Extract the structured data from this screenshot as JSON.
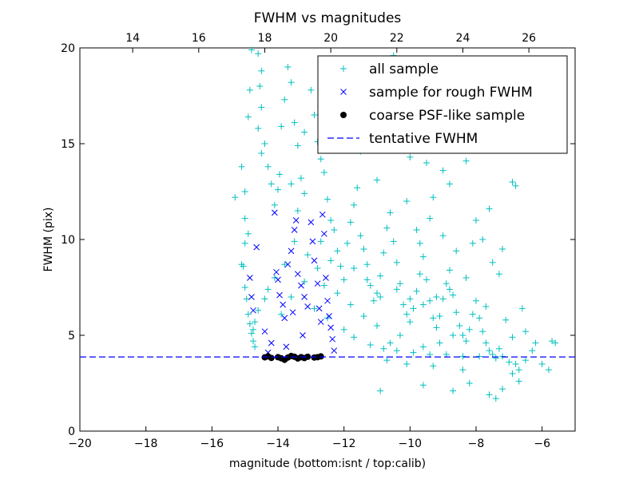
{
  "chart_data": {
    "type": "scatter",
    "title": "FWHM vs magnitudes",
    "xlabel": "magnitude (bottom:isnt / top:calib)",
    "ylabel": "FWHM (pix)",
    "xlim": [
      -20,
      -5
    ],
    "ylim": [
      0,
      20
    ],
    "top_xlim": [
      12.4,
      27.4
    ],
    "x_ticks": [
      -20,
      -18,
      -16,
      -14,
      -12,
      -10,
      -8,
      -6
    ],
    "x_tick_labels": [
      "−20",
      "−18",
      "−16",
      "−14",
      "−12",
      "−10",
      "−8",
      "−6"
    ],
    "top_x_ticks": [
      14,
      16,
      18,
      20,
      22,
      24,
      26
    ],
    "top_x_tick_labels": [
      "14",
      "16",
      "18",
      "20",
      "22",
      "24",
      "26"
    ],
    "y_ticks": [
      0,
      5,
      10,
      15,
      20
    ],
    "y_tick_labels": [
      "0",
      "5",
      "10",
      "15",
      "20"
    ],
    "grid": false,
    "legend_position": "top-right",
    "series": [
      {
        "name": "all sample",
        "marker": "+",
        "color": "#00bfbf",
        "points": [
          [
            -15.3,
            12.2
          ],
          [
            -15.1,
            13.8
          ],
          [
            -15.0,
            12.5
          ],
          [
            -15.0,
            11.1
          ],
          [
            -14.9,
            10.3
          ],
          [
            -15.0,
            9.8
          ],
          [
            -15.1,
            8.7
          ],
          [
            -15.05,
            8.6
          ],
          [
            -15.0,
            7.5
          ],
          [
            -14.95,
            6.9
          ],
          [
            -14.9,
            6.1
          ],
          [
            -14.85,
            5.6
          ],
          [
            -14.8,
            5.1
          ],
          [
            -14.75,
            4.7
          ],
          [
            -14.7,
            4.4
          ],
          [
            -14.9,
            16.4
          ],
          [
            -14.85,
            17.8
          ],
          [
            -14.8,
            19.9
          ],
          [
            -14.6,
            19.7
          ],
          [
            -14.5,
            18.8
          ],
          [
            -14.55,
            18.0
          ],
          [
            -14.5,
            16.9
          ],
          [
            -14.6,
            15.8
          ],
          [
            -14.4,
            15.0
          ],
          [
            -14.5,
            14.5
          ],
          [
            -14.3,
            13.8
          ],
          [
            -14.2,
            12.9
          ],
          [
            -14.0,
            12.6
          ],
          [
            -14.1,
            11.8
          ],
          [
            -13.95,
            13.4
          ],
          [
            -13.9,
            15.9
          ],
          [
            -13.8,
            17.3
          ],
          [
            -13.7,
            19.0
          ],
          [
            -13.6,
            18.2
          ],
          [
            -13.5,
            16.1
          ],
          [
            -13.4,
            14.9
          ],
          [
            -13.3,
            13.2
          ],
          [
            -13.2,
            12.4
          ],
          [
            -13.4,
            11.5
          ],
          [
            -13.6,
            12.9
          ],
          [
            -13.2,
            15.6
          ],
          [
            -13.0,
            17.8
          ],
          [
            -12.9,
            16.5
          ],
          [
            -12.8,
            15.1
          ],
          [
            -12.7,
            14.2
          ],
          [
            -12.6,
            13.5
          ],
          [
            -12.5,
            12.1
          ],
          [
            -12.4,
            11.0
          ],
          [
            -12.3,
            10.5
          ],
          [
            -12.2,
            9.4
          ],
          [
            -12.1,
            8.6
          ],
          [
            -12.0,
            7.9
          ],
          [
            -11.9,
            9.8
          ],
          [
            -11.8,
            10.9
          ],
          [
            -11.7,
            11.8
          ],
          [
            -11.6,
            12.7
          ],
          [
            -11.5,
            10.2
          ],
          [
            -11.4,
            9.5
          ],
          [
            -11.3,
            8.7
          ],
          [
            -11.2,
            7.6
          ],
          [
            -11.1,
            6.8
          ],
          [
            -11.0,
            7.2
          ],
          [
            -10.9,
            8.1
          ],
          [
            -10.8,
            9.3
          ],
          [
            -10.7,
            10.6
          ],
          [
            -10.6,
            11.4
          ],
          [
            -10.5,
            9.9
          ],
          [
            -10.4,
            8.8
          ],
          [
            -10.3,
            7.7
          ],
          [
            -10.2,
            6.6
          ],
          [
            -10.1,
            6.1
          ],
          [
            -10.0,
            5.7
          ],
          [
            -9.9,
            6.4
          ],
          [
            -9.8,
            7.3
          ],
          [
            -9.7,
            8.2
          ],
          [
            -9.6,
            9.1
          ],
          [
            -9.5,
            7.9
          ],
          [
            -9.4,
            6.8
          ],
          [
            -9.3,
            5.9
          ],
          [
            -9.2,
            5.4
          ],
          [
            -9.1,
            6.0
          ],
          [
            -9.0,
            6.9
          ],
          [
            -8.9,
            7.7
          ],
          [
            -8.8,
            8.4
          ],
          [
            -8.7,
            7.1
          ],
          [
            -8.6,
            6.2
          ],
          [
            -8.5,
            5.5
          ],
          [
            -8.4,
            5.0
          ],
          [
            -8.3,
            4.7
          ],
          [
            -8.2,
            5.3
          ],
          [
            -8.1,
            6.1
          ],
          [
            -8.0,
            6.8
          ],
          [
            -7.9,
            5.9
          ],
          [
            -7.8,
            5.2
          ],
          [
            -7.7,
            4.6
          ],
          [
            -7.6,
            4.2
          ],
          [
            -7.5,
            4.0
          ],
          [
            -7.4,
            3.8
          ],
          [
            -7.3,
            4.3
          ],
          [
            -7.2,
            3.9
          ],
          [
            -7.0,
            3.6
          ],
          [
            -6.8,
            3.5
          ],
          [
            -6.7,
            3.2
          ],
          [
            -6.5,
            3.7
          ],
          [
            -6.3,
            4.2
          ],
          [
            -6.0,
            3.5
          ],
          [
            -5.8,
            3.2
          ],
          [
            -5.7,
            4.7
          ],
          [
            -5.6,
            4.6
          ],
          [
            -6.2,
            4.6
          ],
          [
            -6.9,
            13.0
          ],
          [
            -6.8,
            12.8
          ],
          [
            -7.5,
            16.3
          ],
          [
            -8.2,
            17.8
          ],
          [
            -8.3,
            14.1
          ],
          [
            -9.8,
            19.3
          ],
          [
            -10.2,
            17.9
          ],
          [
            -10.7,
            15.6
          ],
          [
            -10.0,
            14.3
          ],
          [
            -9.5,
            14.0
          ],
          [
            -9.0,
            13.6
          ],
          [
            -8.8,
            12.9
          ],
          [
            -7.6,
            11.6
          ],
          [
            -7.2,
            9.5
          ],
          [
            -7.5,
            8.8
          ],
          [
            -8.1,
            9.8
          ],
          [
            -9.3,
            12.2
          ],
          [
            -10.1,
            12.0
          ],
          [
            -11.0,
            13.1
          ],
          [
            -11.5,
            14.6
          ],
          [
            -12.1,
            16.2
          ],
          [
            -12.3,
            17.0
          ],
          [
            -11.6,
            18.7
          ],
          [
            -11.3,
            19.2
          ],
          [
            -10.5,
            19.6
          ],
          [
            -10.8,
            18.2
          ],
          [
            -9.2,
            16.8
          ],
          [
            -8.5,
            15.4
          ],
          [
            -8.0,
            11.0
          ],
          [
            -7.8,
            10.0
          ],
          [
            -7.3,
            8.2
          ],
          [
            -6.6,
            6.4
          ],
          [
            -6.5,
            5.2
          ],
          [
            -6.9,
            4.9
          ],
          [
            -7.1,
            5.8
          ],
          [
            -7.7,
            6.5
          ],
          [
            -8.7,
            5.0
          ],
          [
            -9.1,
            4.6
          ],
          [
            -9.6,
            4.4
          ],
          [
            -10.3,
            5.0
          ],
          [
            -10.6,
            4.6
          ],
          [
            -11.0,
            5.5
          ],
          [
            -11.4,
            6.0
          ],
          [
            -11.8,
            6.6
          ],
          [
            -12.2,
            7.2
          ],
          [
            -12.6,
            7.6
          ],
          [
            -12.8,
            8.5
          ],
          [
            -13.1,
            9.2
          ],
          [
            -13.5,
            9.9
          ],
          [
            -13.8,
            8.7
          ],
          [
            -14.1,
            8.0
          ],
          [
            -14.3,
            7.4
          ],
          [
            -14.4,
            6.9
          ],
          [
            -14.6,
            6.3
          ],
          [
            -14.7,
            5.7
          ],
          [
            -14.75,
            5.3
          ],
          [
            -13.9,
            6.1
          ],
          [
            -13.6,
            7.0
          ],
          [
            -13.2,
            7.8
          ],
          [
            -12.9,
            6.4
          ],
          [
            -12.5,
            5.9
          ],
          [
            -12.0,
            5.3
          ],
          [
            -11.7,
            4.9
          ],
          [
            -11.2,
            4.5
          ],
          [
            -10.8,
            4.3
          ],
          [
            -10.4,
            4.2
          ],
          [
            -9.9,
            4.1
          ],
          [
            -9.4,
            4.0
          ],
          [
            -8.9,
            4.0
          ],
          [
            -8.4,
            3.9
          ],
          [
            -7.9,
            3.9
          ],
          [
            -10.9,
            2.1
          ],
          [
            -9.6,
            2.4
          ],
          [
            -8.7,
            2.1
          ],
          [
            -8.2,
            2.5
          ],
          [
            -7.6,
            1.9
          ],
          [
            -7.4,
            1.7
          ],
          [
            -7.2,
            2.2
          ],
          [
            -6.7,
            2.6
          ],
          [
            -6.9,
            3.0
          ],
          [
            -8.4,
            3.2
          ],
          [
            -9.3,
            3.4
          ],
          [
            -10.1,
            3.5
          ],
          [
            -10.7,
            3.7
          ],
          [
            -9.7,
            9.8
          ],
          [
            -9.8,
            10.5
          ],
          [
            -9.4,
            11.1
          ],
          [
            -9.0,
            10.2
          ],
          [
            -8.6,
            9.4
          ],
          [
            -8.3,
            8.0
          ],
          [
            -8.8,
            7.4
          ],
          [
            -9.2,
            7.0
          ],
          [
            -9.6,
            6.6
          ],
          [
            -10.0,
            6.9
          ],
          [
            -10.4,
            7.4
          ],
          [
            -10.9,
            7.0
          ],
          [
            -11.3,
            7.9
          ],
          [
            -11.7,
            8.5
          ],
          [
            -12.4,
            8.9
          ],
          [
            -12.7,
            9.9
          ]
        ]
      },
      {
        "name": "sample for rough FWHM",
        "marker": "x",
        "color": "#0000ff",
        "points": [
          [
            -14.85,
            8.0
          ],
          [
            -14.8,
            7.0
          ],
          [
            -14.75,
            6.3
          ],
          [
            -14.65,
            9.6
          ],
          [
            -14.4,
            5.2
          ],
          [
            -14.2,
            4.6
          ],
          [
            -14.1,
            11.4
          ],
          [
            -14.05,
            8.3
          ],
          [
            -14.0,
            7.9
          ],
          [
            -13.95,
            7.1
          ],
          [
            -13.85,
            6.6
          ],
          [
            -13.8,
            5.9
          ],
          [
            -13.75,
            4.4
          ],
          [
            -13.7,
            8.7
          ],
          [
            -13.6,
            9.4
          ],
          [
            -13.5,
            10.5
          ],
          [
            -13.45,
            11.0
          ],
          [
            -13.4,
            8.2
          ],
          [
            -13.3,
            7.6
          ],
          [
            -13.2,
            7.0
          ],
          [
            -13.1,
            6.5
          ],
          [
            -13.0,
            10.9
          ],
          [
            -12.95,
            9.9
          ],
          [
            -12.9,
            8.9
          ],
          [
            -12.8,
            7.7
          ],
          [
            -12.75,
            6.4
          ],
          [
            -12.7,
            5.7
          ],
          [
            -12.65,
            11.3
          ],
          [
            -12.6,
            10.3
          ],
          [
            -12.55,
            8.0
          ],
          [
            -12.5,
            6.8
          ],
          [
            -12.45,
            6.0
          ],
          [
            -12.4,
            5.4
          ],
          [
            -12.35,
            4.8
          ],
          [
            -12.3,
            4.2
          ],
          [
            -13.25,
            5.0
          ],
          [
            -13.55,
            6.2
          ],
          [
            -14.3,
            4.1
          ]
        ]
      },
      {
        "name": "coarse PSF-like sample",
        "marker": "o",
        "color": "#000000",
        "points": [
          [
            -14.4,
            3.85
          ],
          [
            -14.2,
            3.82
          ],
          [
            -14.0,
            3.86
          ],
          [
            -13.9,
            3.8
          ],
          [
            -13.8,
            3.72
          ],
          [
            -13.7,
            3.84
          ],
          [
            -13.5,
            3.88
          ],
          [
            -13.4,
            3.79
          ],
          [
            -13.3,
            3.86
          ],
          [
            -13.2,
            3.81
          ],
          [
            -13.1,
            3.88
          ],
          [
            -12.9,
            3.84
          ],
          [
            -12.8,
            3.86
          ],
          [
            -12.7,
            3.9
          ],
          [
            -14.3,
            3.9
          ],
          [
            -13.6,
            3.92
          ]
        ]
      }
    ],
    "tentative_fwhm": {
      "name": "tentative FWHM",
      "y": 3.87,
      "color": "#0000ff",
      "style": "dashed"
    }
  }
}
